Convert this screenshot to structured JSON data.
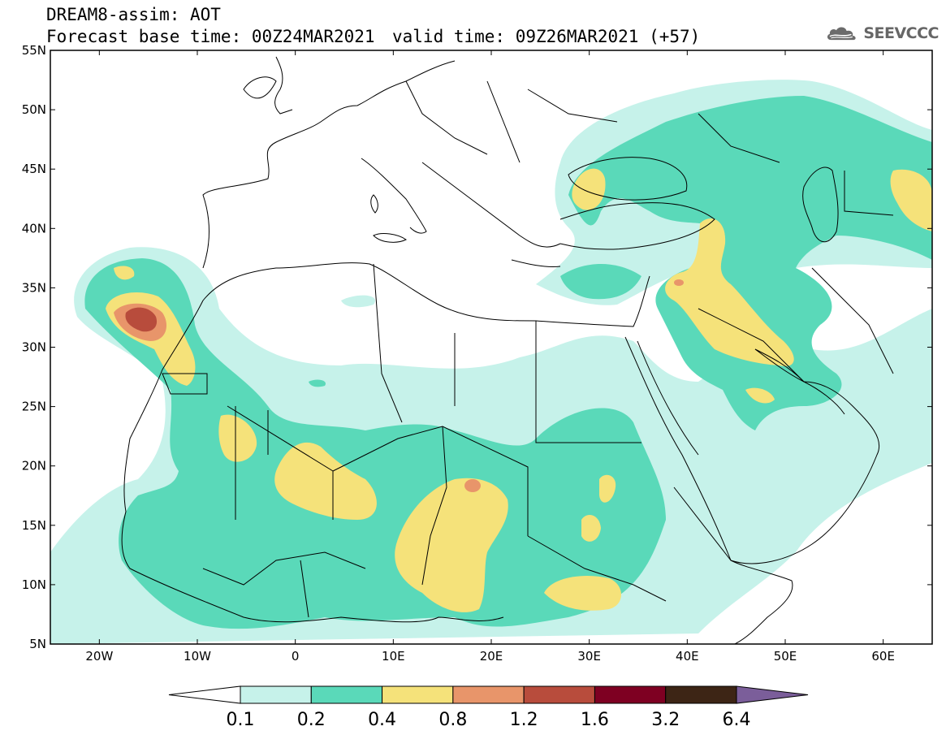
{
  "header": {
    "line1": "DREAM8-assim: AOT",
    "line2": "Forecast base time: 00Z24MAR2021",
    "valid": "valid time: 09Z26MAR2021 (+57)"
  },
  "logo": {
    "icon": "cloud-icon",
    "text": "SEEVCCC"
  },
  "axes": {
    "lat_labels": [
      "55N",
      "50N",
      "45N",
      "40N",
      "35N",
      "30N",
      "25N",
      "20N",
      "15N",
      "10N",
      "5N"
    ],
    "lon_labels": [
      "20W",
      "10W",
      "0",
      "10E",
      "20E",
      "30E",
      "40E",
      "50E",
      "60E"
    ],
    "lat_range": [
      5,
      55
    ],
    "lon_range": [
      -25,
      65
    ]
  },
  "legend": {
    "levels": [
      "0.1",
      "0.2",
      "0.4",
      "0.8",
      "1.2",
      "1.6",
      "3.2",
      "6.4"
    ],
    "colors": [
      "#ffffff",
      "#c6f2ea",
      "#5ad9b9",
      "#f5e27a",
      "#e8956a",
      "#b84c3c",
      "#7e0022",
      "#3d2515",
      "#7b5e9a"
    ]
  }
}
